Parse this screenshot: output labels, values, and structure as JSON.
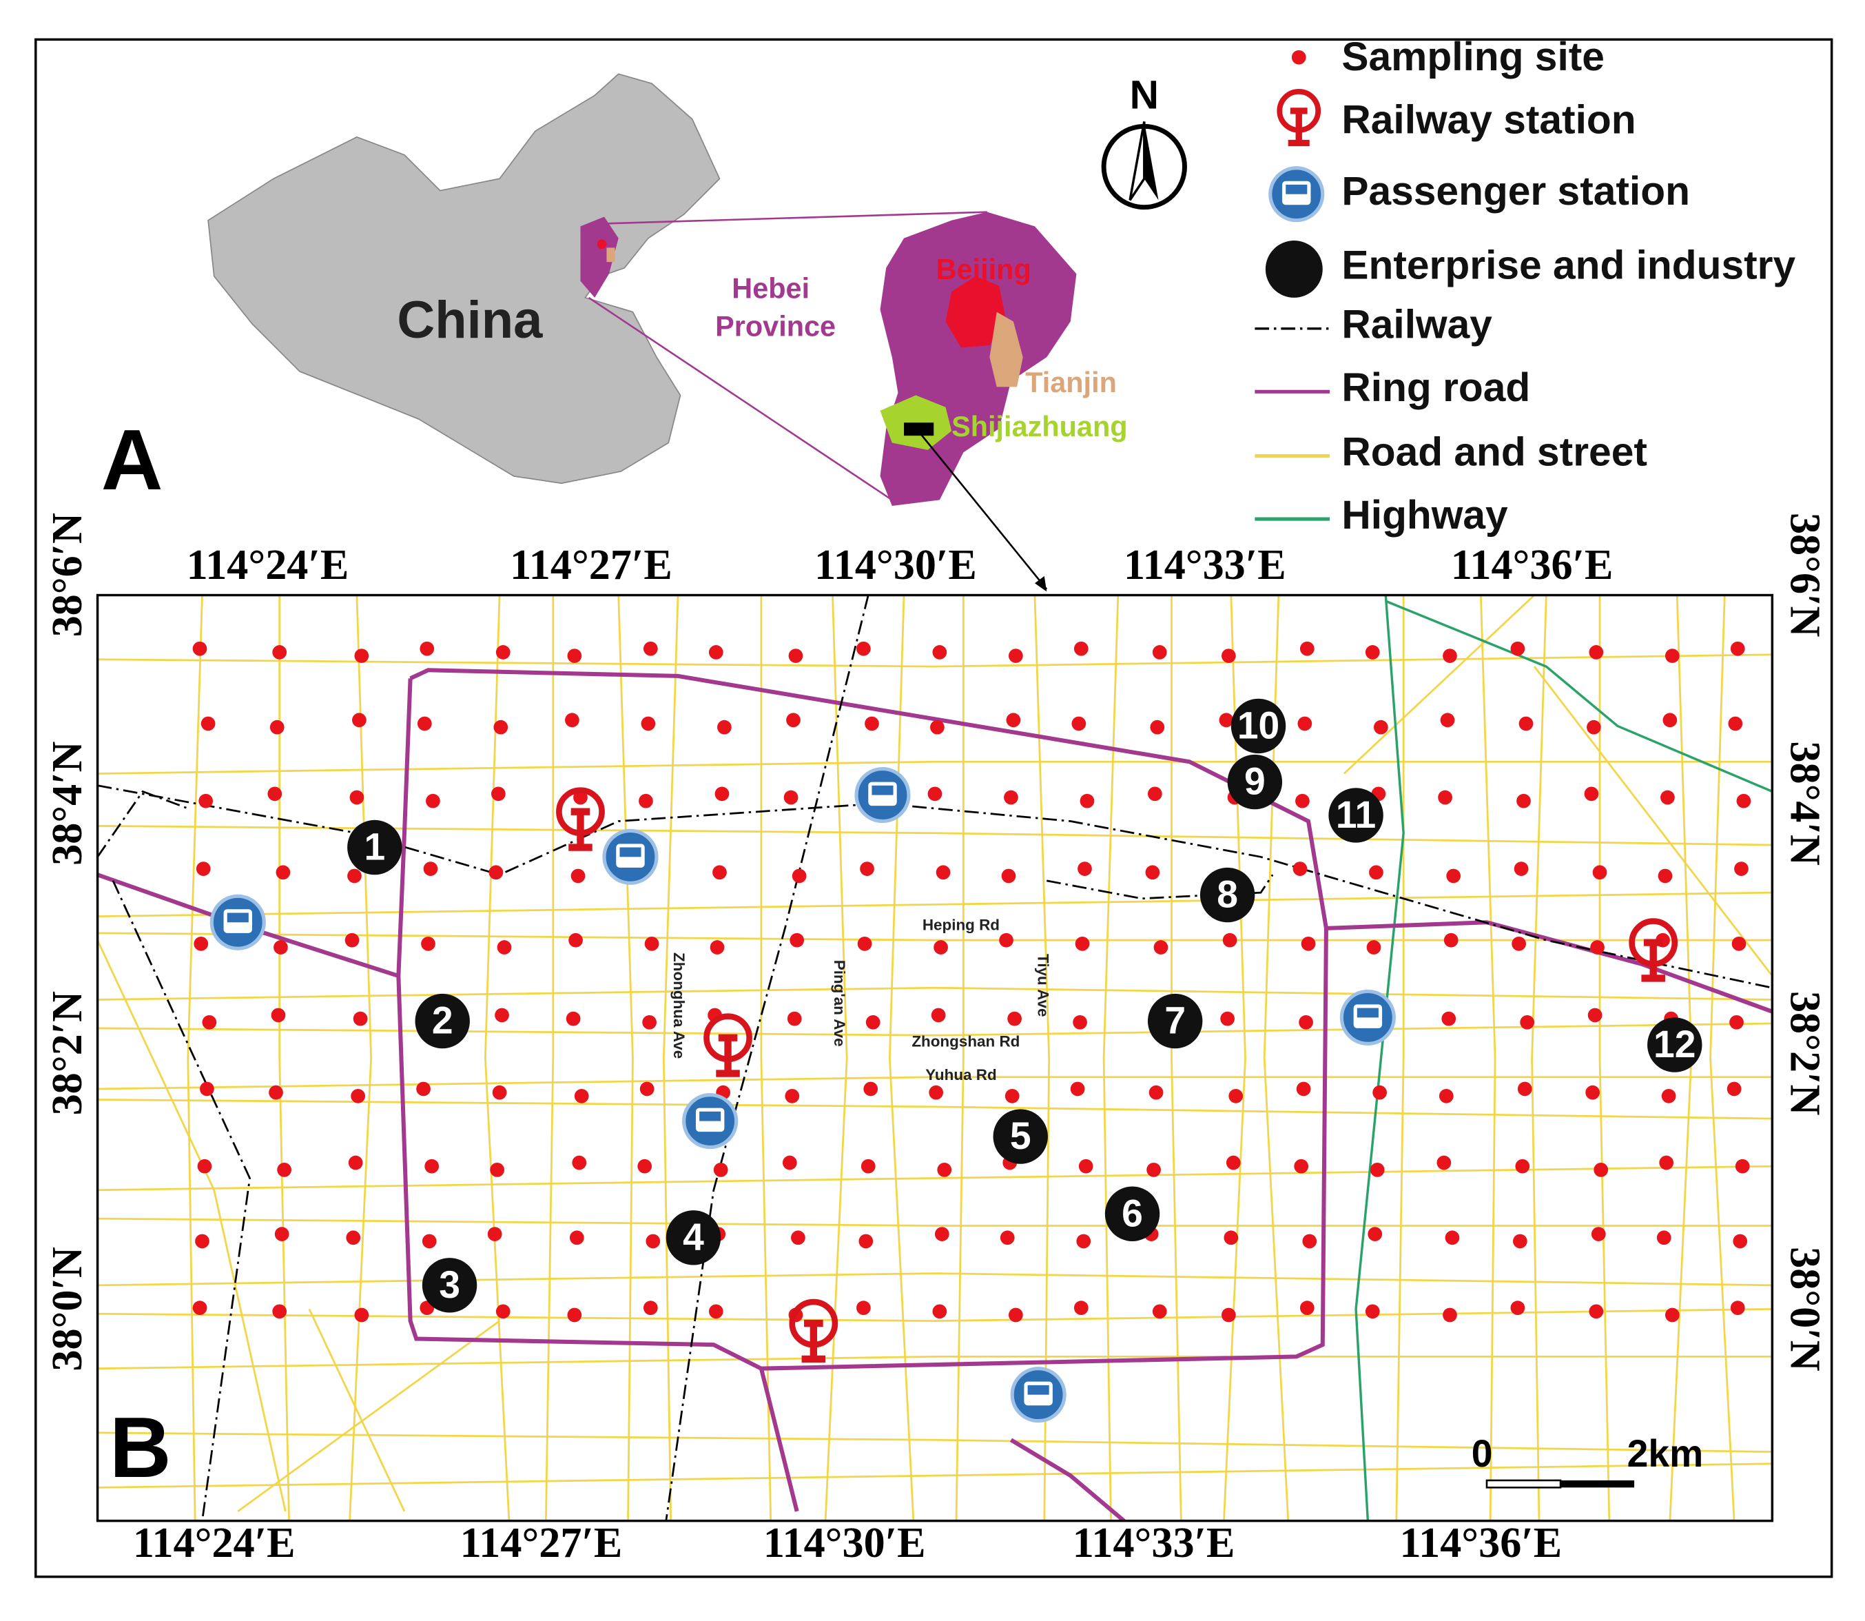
{
  "panels": {
    "a": "A",
    "b": "B"
  },
  "north": "N",
  "legend": [
    "Sampling site",
    "Railway station",
    "Passenger station",
    "Enterprise and industry",
    "Railway",
    "Ring road",
    "Road and street",
    "Highway"
  ],
  "inset": {
    "country": "China",
    "province": [
      "Hebei",
      "Province"
    ],
    "cities": [
      "Beijing",
      "Tianjin",
      "Shijiazhuang"
    ]
  },
  "longitudes": [
    "114°24′E",
    "114°27′E",
    "114°30′E",
    "114°33′E",
    "114°36′E"
  ],
  "latitudes": [
    "38°6′N",
    "38°4′N",
    "38°2′N",
    "38°0′N"
  ],
  "roads": [
    "Heping Rd",
    "Zhongshan Rd",
    "Yuhua Rd",
    "Zhonghua Ave",
    "Ping'an Ave",
    "Tiyu Ave"
  ],
  "enterprises": [
    "1",
    "2",
    "3",
    "4",
    "5",
    "6",
    "7",
    "8",
    "9",
    "10",
    "11",
    "12"
  ],
  "scale": [
    "0",
    "2km"
  ]
}
